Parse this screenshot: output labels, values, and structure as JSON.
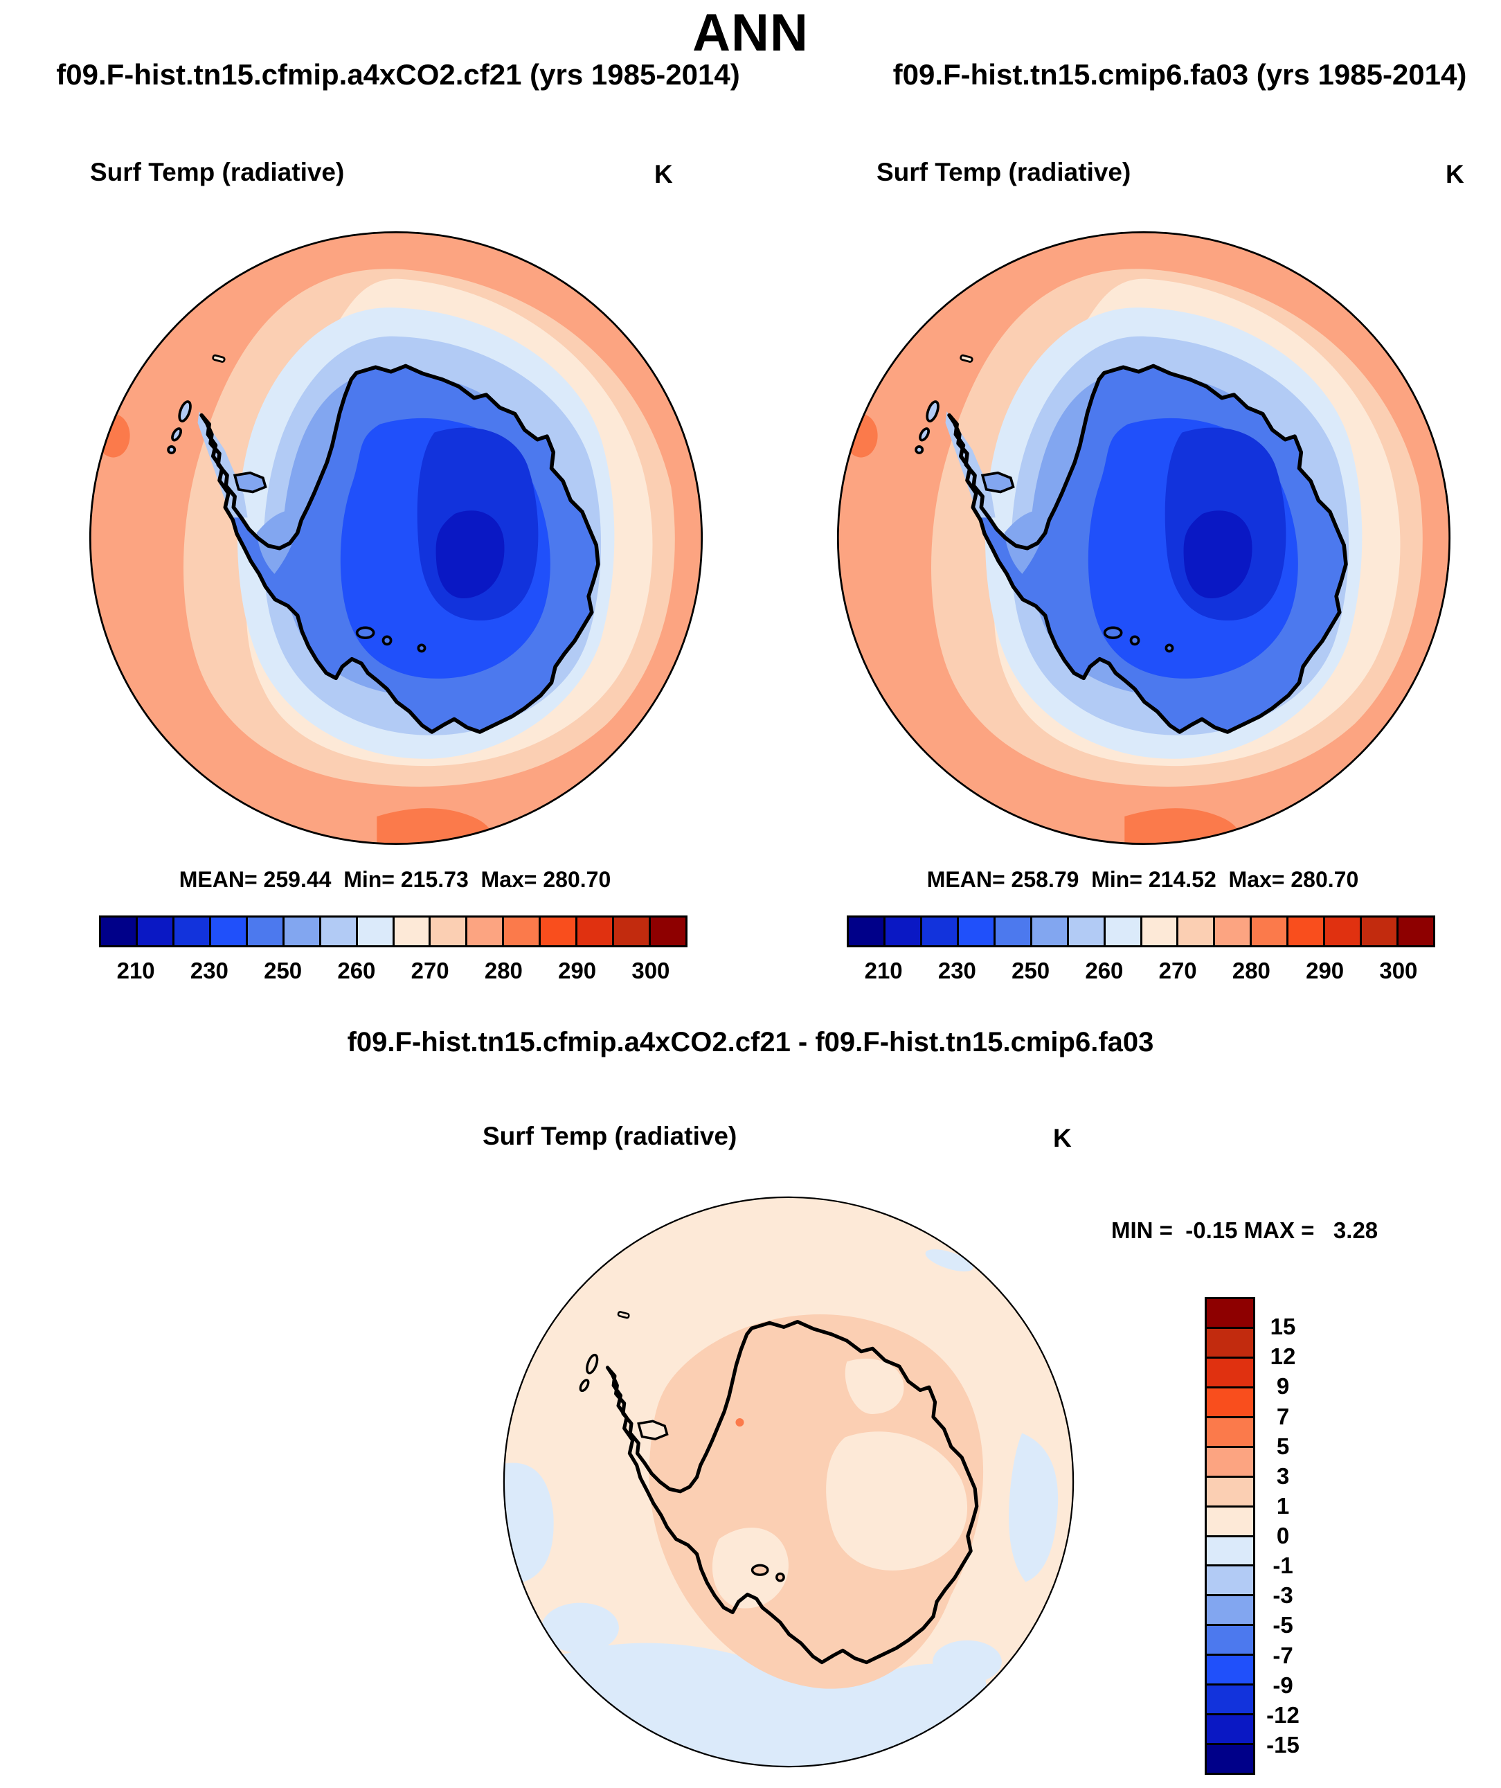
{
  "header": {
    "title": "ANN"
  },
  "panels": {
    "left": {
      "title": "f09.F-hist.tn15.cfmip.a4xCO2.cf21 (yrs 1985-2014)",
      "field": "Surf Temp (radiative)",
      "units": "K",
      "stats_text": "MEAN= 259.44  Min= 215.73  Max= 280.70",
      "mean": "259.44",
      "min": "215.73",
      "max": "280.70"
    },
    "right": {
      "title": "f09.F-hist.tn15.cmip6.fa03 (yrs 1985-2014)",
      "field": "Surf Temp (radiative)",
      "units": "K",
      "stats_text": "MEAN= 258.79  Min= 214.52  Max= 280.70",
      "mean": "258.79",
      "min": "214.52",
      "max": "280.70"
    },
    "diff": {
      "title": "f09.F-hist.tn15.cfmip.a4xCO2.cf21 - f09.F-hist.tn15.cmip6.fa03",
      "field": "Surf Temp (radiative)",
      "units": "K",
      "stats_text": "MIN =  -0.15 MAX =   3.28",
      "min": "-0.15",
      "max": "3.28"
    }
  },
  "palette": [
    "#000089",
    "#0A18C4",
    "#1233DC",
    "#2050FA",
    "#4C79EE",
    "#82A6F0",
    "#B2CBF5",
    "#DBEAFA",
    "#FDE9D7",
    "#FBCFB3",
    "#FCA481",
    "#FB7A4B",
    "#F94E1D",
    "#E03110",
    "#C22B0E",
    "#8E0000"
  ],
  "colorbar": {
    "orientation": "horizontal",
    "tick_labels": [
      "210",
      "230",
      "250",
      "260",
      "270",
      "280",
      "290",
      "300"
    ]
  },
  "diff_colorbar": {
    "orientation": "vertical",
    "tick_labels": [
      "15",
      "12",
      "9",
      "7",
      "5",
      "3",
      "1",
      "0",
      "-1",
      "-3",
      "-5",
      "-7",
      "-9",
      "-12",
      "-15"
    ]
  },
  "chart_data": [
    {
      "type": "heatmap",
      "subtype": "polar-stereographic-contour-map",
      "region": "Antarctica / Southern Hemisphere polar cap",
      "title": "f09.F-hist.tn15.cfmip.a4xCO2.cf21 (yrs 1985-2014)",
      "variable": "Surf Temp (radiative)",
      "units": "K",
      "stats": {
        "mean": 259.44,
        "min": 215.73,
        "max": 280.7
      },
      "labeled_levels": [
        210,
        230,
        250,
        260,
        270,
        280,
        290,
        300
      ],
      "n_color_bins": 16,
      "legend_position": "below",
      "palette_order": "blue-to-red"
    },
    {
      "type": "heatmap",
      "subtype": "polar-stereographic-contour-map",
      "region": "Antarctica / Southern Hemisphere polar cap",
      "title": "f09.F-hist.tn15.cmip6.fa03 (yrs 1985-2014)",
      "variable": "Surf Temp (radiative)",
      "units": "K",
      "stats": {
        "mean": 258.79,
        "min": 214.52,
        "max": 280.7
      },
      "labeled_levels": [
        210,
        230,
        250,
        260,
        270,
        280,
        290,
        300
      ],
      "n_color_bins": 16,
      "legend_position": "below",
      "palette_order": "blue-to-red"
    },
    {
      "type": "heatmap",
      "subtype": "polar-stereographic-contour-map-difference",
      "region": "Antarctica / Southern Hemisphere polar cap",
      "title": "f09.F-hist.tn15.cfmip.a4xCO2.cf21 - f09.F-hist.tn15.cmip6.fa03",
      "variable": "Surf Temp (radiative)",
      "units": "K",
      "stats": {
        "min": -0.15,
        "max": 3.28
      },
      "labeled_levels": [
        -15,
        -12,
        -9,
        -7,
        -5,
        -3,
        -1,
        0,
        1,
        3,
        5,
        7,
        9,
        12,
        15
      ],
      "n_color_bins": 16,
      "legend_position": "right",
      "palette_order": "red-to-blue-top-down"
    }
  ]
}
